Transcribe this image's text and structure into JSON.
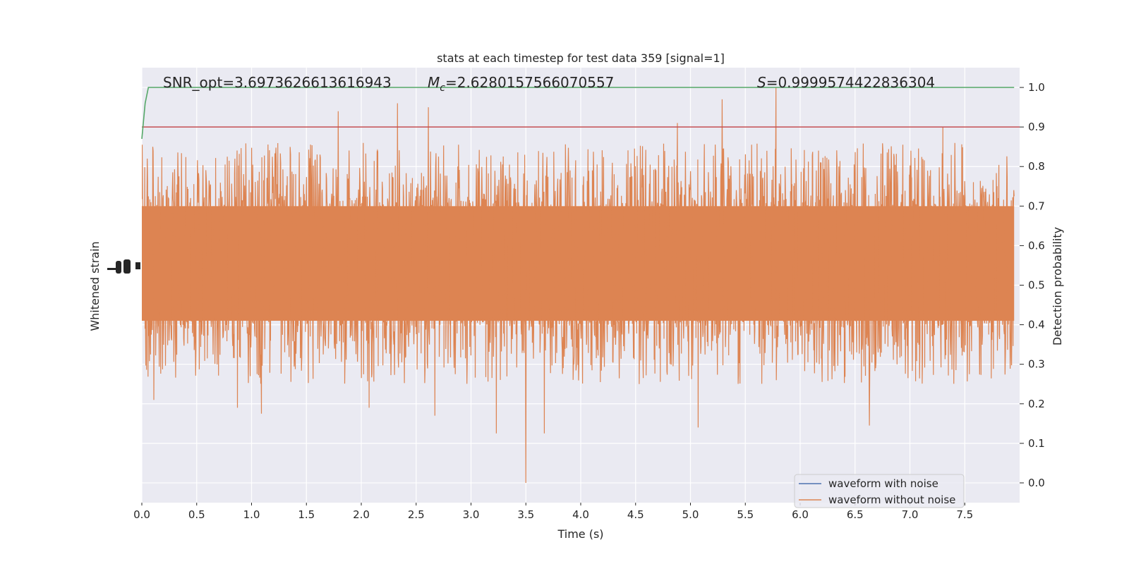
{
  "chart_data": {
    "type": "line",
    "title": "stats at each timestep for test data 359 [signal=1]",
    "xlabel": "Time (s)",
    "ylabel_left": "Whitened strain",
    "ylabel_right": "Detection probability",
    "xlim": [
      0.0,
      8.0
    ],
    "ylim_right": [
      -0.05,
      1.05
    ],
    "x_ticks": [
      0.0,
      0.5,
      1.0,
      1.5,
      2.0,
      2.5,
      3.0,
      3.5,
      4.0,
      4.5,
      5.0,
      5.5,
      6.0,
      6.5,
      7.0,
      7.5
    ],
    "x_tick_labels": [
      "0.0",
      "0.5",
      "1.0",
      "1.5",
      "2.0",
      "2.5",
      "3.0",
      "3.5",
      "4.0",
      "4.5",
      "5.0",
      "5.5",
      "6.0",
      "6.5",
      "7.0",
      "7.5"
    ],
    "y_ticks_right": [
      0.0,
      0.1,
      0.2,
      0.3,
      0.4,
      0.5,
      0.6,
      0.7,
      0.8,
      0.9,
      1.0
    ],
    "y_tick_labels_right": [
      "0.0",
      "0.1",
      "0.2",
      "0.3",
      "0.4",
      "0.5",
      "0.6",
      "0.7",
      "0.8",
      "0.9",
      "1.0"
    ],
    "threshold": 0.9,
    "grid": true,
    "legend_position": "bottom-right",
    "stats": {
      "snr_text": "SNR_opt=3.6973626613616943",
      "mc_symbol": "M",
      "mc_subscript": "c",
      "mc_value": "=2.6280157566070557",
      "s_symbol": "S",
      "s_value": "=0.9999574422836304"
    },
    "series": [
      {
        "name": "waveform with noise",
        "color": "#4c72b0",
        "note": "whitened strain (hidden behind orange trace)"
      },
      {
        "name": "waveform without noise",
        "color": "#dd8452"
      },
      {
        "name": "detection probability",
        "color": "#55a868",
        "x": [
          0.0,
          0.03,
          0.06,
          7.95
        ],
        "y": [
          0.87,
          0.96,
          1.0,
          1.0
        ]
      },
      {
        "name": "threshold",
        "color": "#c44e52"
      }
    ],
    "noise_band": {
      "low": 0.41,
      "high": 0.7,
      "mid": 0.55
    },
    "notable_spikes": [
      {
        "x": 0.05,
        "y": 0.82
      },
      {
        "x": 0.1,
        "y": 0.85
      },
      {
        "x": 1.79,
        "y": 0.94
      },
      {
        "x": 2.33,
        "y": 0.96
      },
      {
        "x": 2.61,
        "y": 0.95
      },
      {
        "x": 5.29,
        "y": 0.97
      },
      {
        "x": 5.78,
        "y": 1.0
      },
      {
        "x": 4.88,
        "y": 0.91
      },
      {
        "x": 7.3,
        "y": 0.9
      },
      {
        "x": 0.87,
        "y": 0.19
      },
      {
        "x": 1.09,
        "y": 0.175
      },
      {
        "x": 2.67,
        "y": 0.17
      },
      {
        "x": 3.23,
        "y": 0.125
      },
      {
        "x": 3.5,
        "y": 0.0
      },
      {
        "x": 3.67,
        "y": 0.125
      },
      {
        "x": 5.07,
        "y": 0.14
      },
      {
        "x": 6.63,
        "y": 0.145
      },
      {
        "x": 0.11,
        "y": 0.21
      },
      {
        "x": 2.07,
        "y": 0.19
      }
    ]
  }
}
